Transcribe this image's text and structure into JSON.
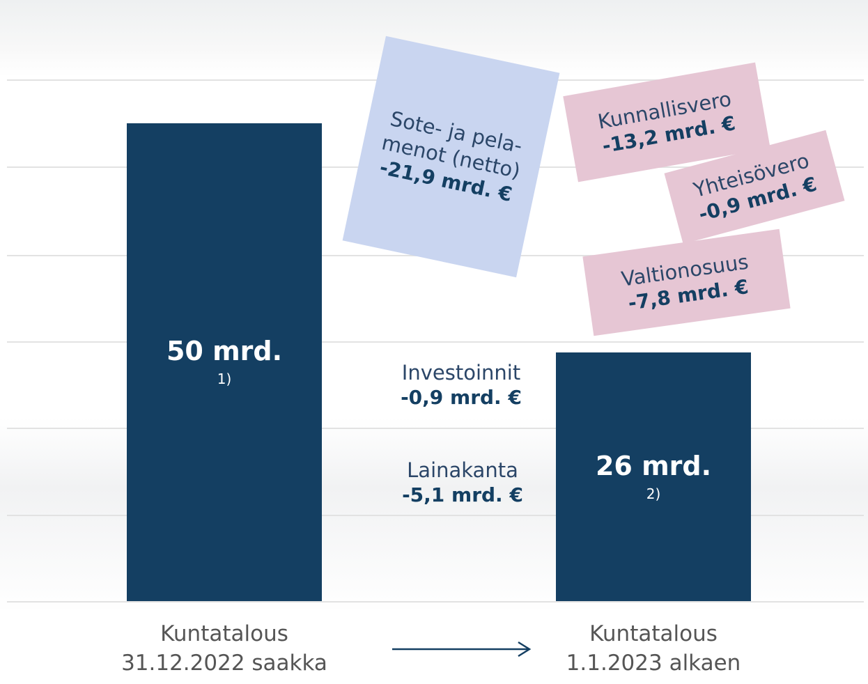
{
  "chart_data": {
    "type": "bar",
    "categories": [
      "Kuntatalous 31.12.2022 saakka",
      "Kuntatalous 1.1.2023 alkaen"
    ],
    "values": [
      50,
      26
    ],
    "value_labels": [
      "50 mrd.",
      "26 mrd."
    ],
    "footnotes": [
      "1)",
      "2)"
    ],
    "color": "#143f62",
    "annotations": [
      {
        "label": "Sote- ja pela-menot (netto)",
        "value_label": "-21,9 mrd. €",
        "color": "#c9d5f0"
      },
      {
        "label": "Kunnallisvero",
        "value_label": "-13,2 mrd. €",
        "color": "#e6c6d4"
      },
      {
        "label": "Yhteisövero",
        "value_label": "-0,9 mrd. €",
        "color": "#e6c6d4"
      },
      {
        "label": "Valtionosuus",
        "value_label": "-7,8 mrd. €",
        "color": "#e6c6d4"
      },
      {
        "label": "Investoinnit",
        "value_label": "-0,9 mrd. €"
      },
      {
        "label": "Lainakanta",
        "value_label": "-5,1 mrd. €"
      }
    ]
  }
}
